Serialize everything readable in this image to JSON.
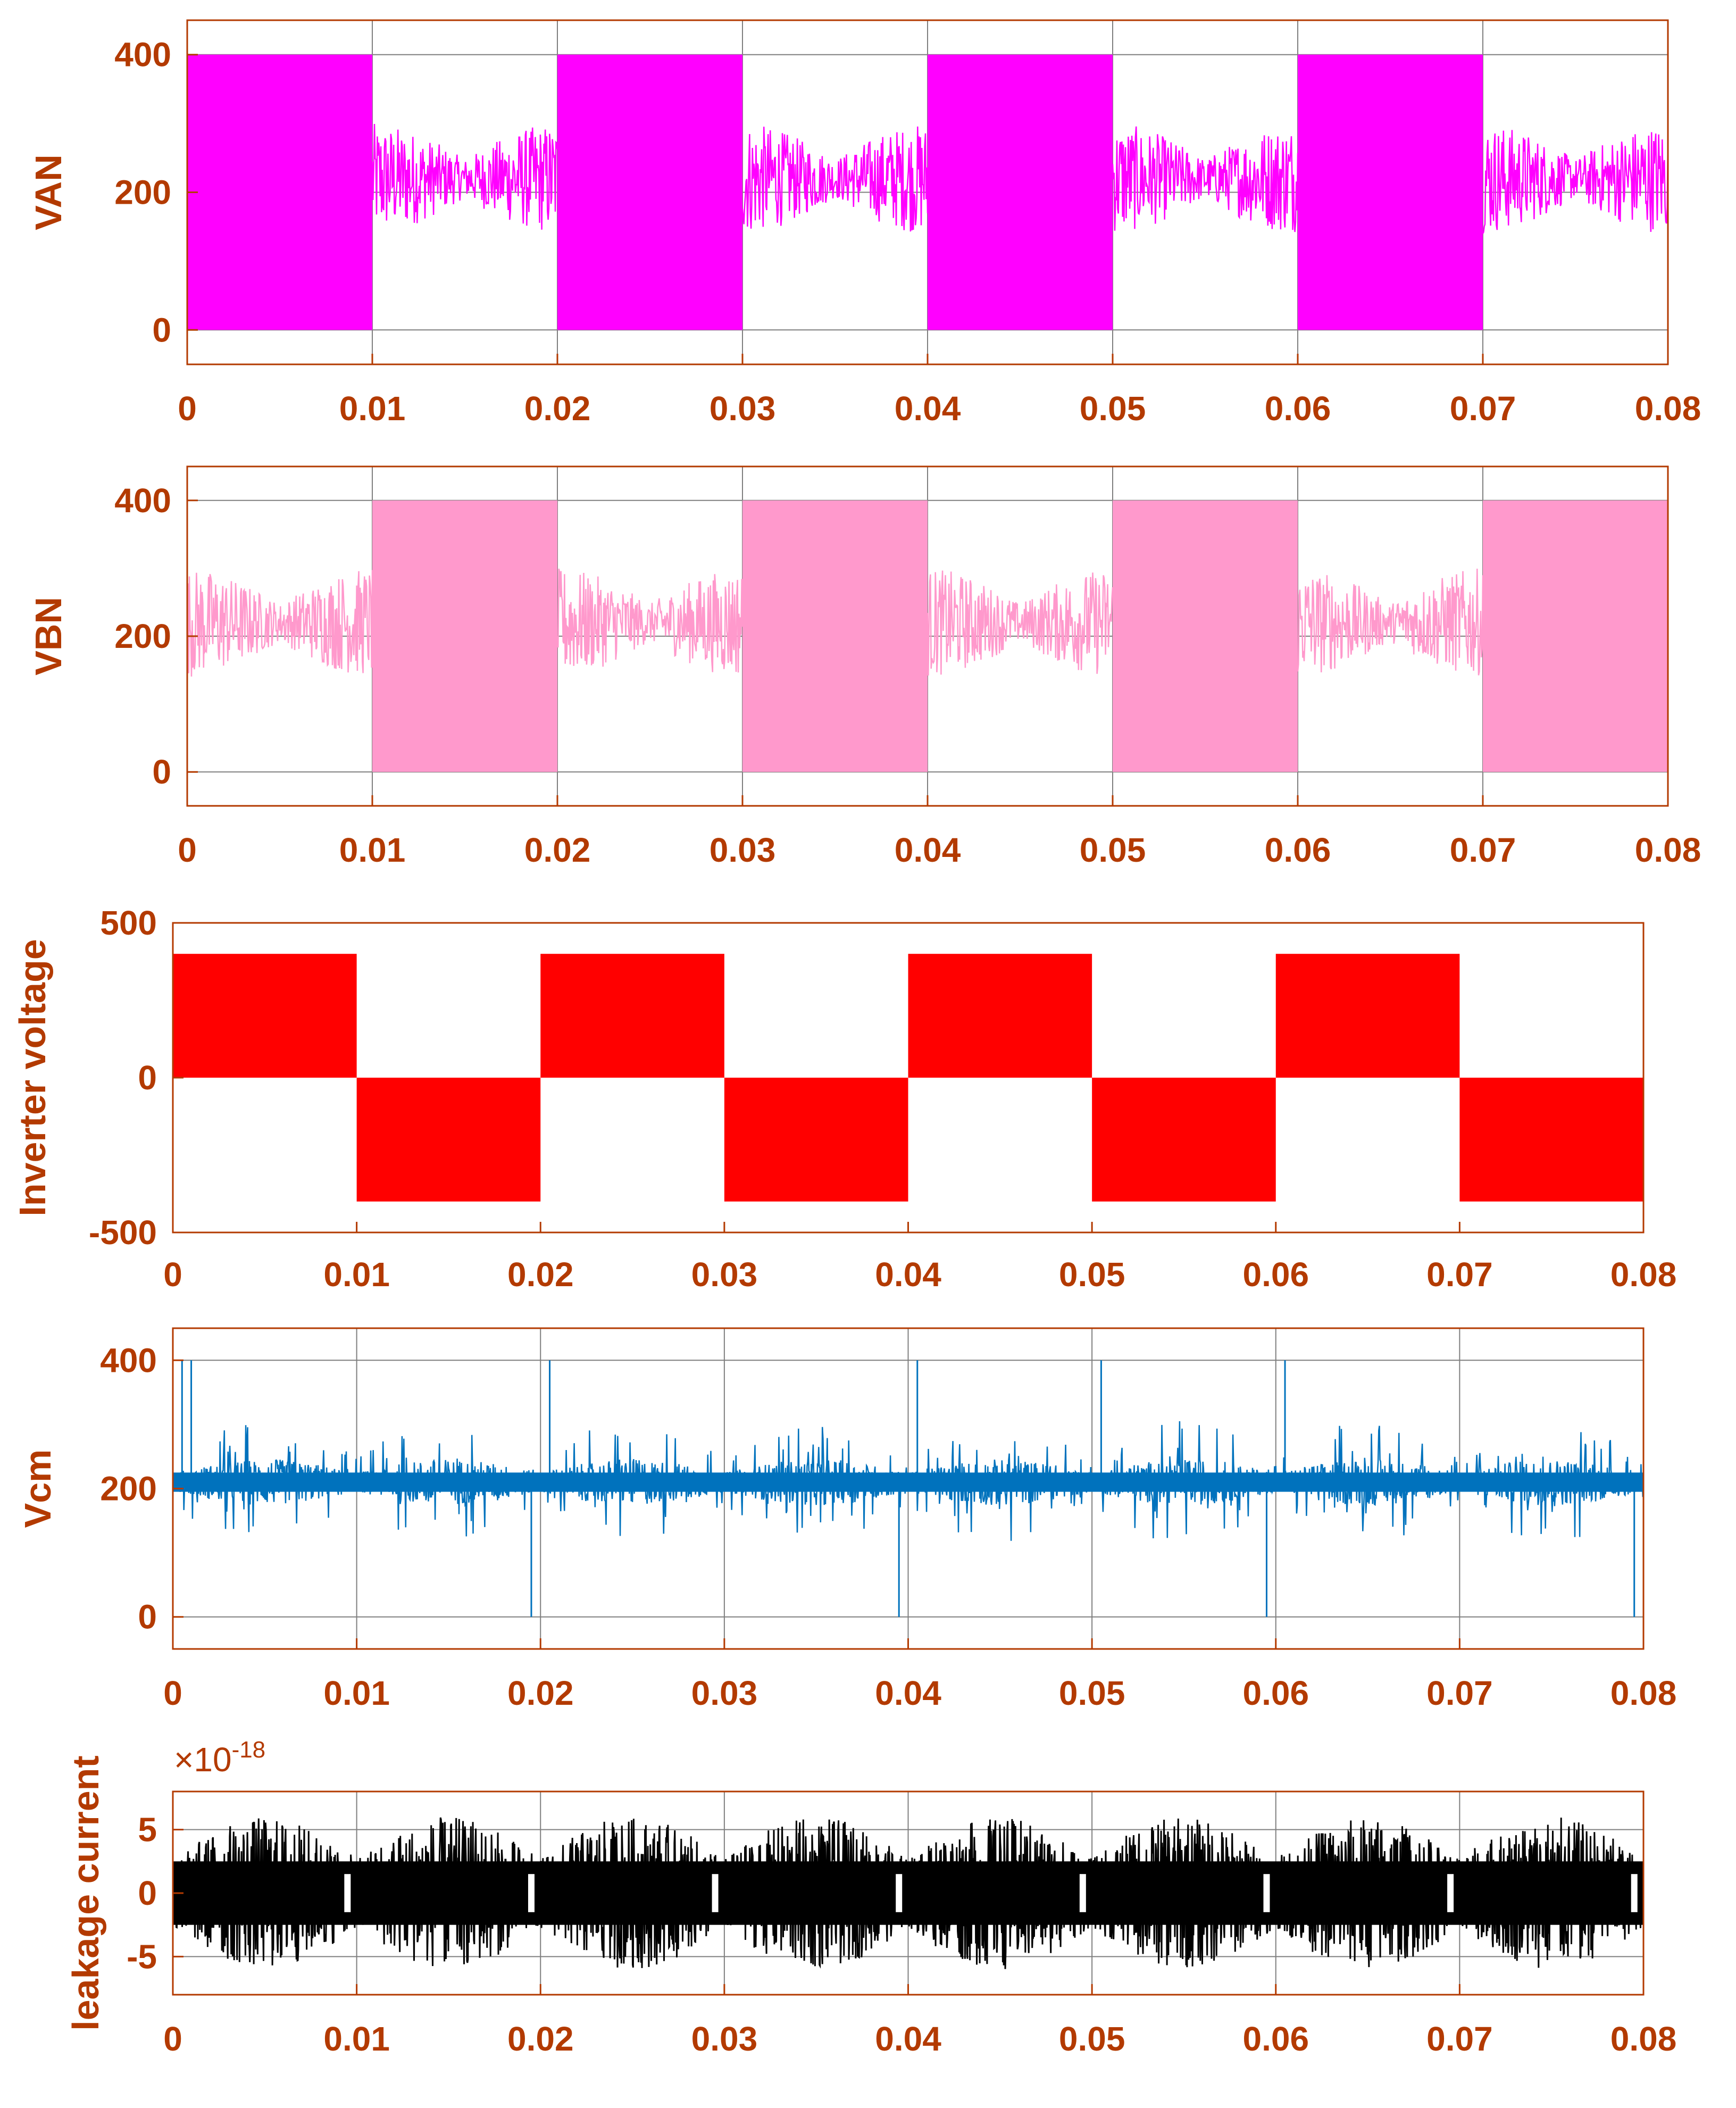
{
  "colors": {
    "axis": "#b33a00",
    "grid": "#7f7f7f",
    "van": "#ff00ff",
    "vbn": "#ff99cc",
    "inverter": "#ff0000",
    "vcm": "#0072bd",
    "leakage": "#000000"
  },
  "chart_data": [
    {
      "type": "line",
      "id": "van",
      "ylabel": "VAN",
      "xlim": [
        0,
        0.08
      ],
      "ylim": [
        -50,
        450
      ],
      "xticks": [
        "0",
        "0.01",
        "0.02",
        "0.03",
        "0.04",
        "0.05",
        "0.06",
        "0.07",
        "0.08"
      ],
      "yticks": [
        "0",
        "200",
        "400"
      ],
      "yticks_values": [
        0,
        200,
        400
      ],
      "grid": true,
      "waveform": {
        "kind": "pwm_square",
        "period": 0.02,
        "high_start": 0.0,
        "high_level": 400,
        "low_level": 0,
        "ringing_center": 220,
        "ringing_amplitude": 80
      }
    },
    {
      "type": "line",
      "id": "vbn",
      "ylabel": "VBN",
      "xlim": [
        0,
        0.08
      ],
      "ylim": [
        -50,
        450
      ],
      "xticks": [
        "0",
        "0.01",
        "0.02",
        "0.03",
        "0.04",
        "0.05",
        "0.06",
        "0.07",
        "0.08"
      ],
      "yticks": [
        "0",
        "200",
        "400"
      ],
      "yticks_values": [
        0,
        200,
        400
      ],
      "grid": true,
      "waveform": {
        "kind": "pwm_square",
        "period": 0.02,
        "high_start": 0.01,
        "high_level": 400,
        "low_level": 0,
        "ringing_center": 220,
        "ringing_amplitude": 80
      }
    },
    {
      "type": "line",
      "id": "inverter",
      "ylabel": "Inverter voltage",
      "xlim": [
        0,
        0.08
      ],
      "ylim": [
        -500,
        500
      ],
      "xticks": [
        "0",
        "0.01",
        "0.02",
        "0.03",
        "0.04",
        "0.05",
        "0.06",
        "0.07",
        "0.08"
      ],
      "yticks": [
        "-500",
        "0",
        "500"
      ],
      "yticks_values": [
        -500,
        0,
        500
      ],
      "grid": false,
      "waveform": {
        "kind": "bipolar_pwm",
        "period": 0.02,
        "level": 400
      }
    },
    {
      "type": "line",
      "id": "vcm",
      "ylabel": "Vcm",
      "xlim": [
        0,
        0.08
      ],
      "ylim": [
        -50,
        450
      ],
      "xticks": [
        "0",
        "0.01",
        "0.02",
        "0.03",
        "0.04",
        "0.05",
        "0.06",
        "0.07",
        "0.08"
      ],
      "yticks": [
        "0",
        "200",
        "400"
      ],
      "yticks_values": [
        0,
        200,
        400
      ],
      "grid": true,
      "waveform": {
        "kind": "noise",
        "center": 210,
        "amplitude": 60,
        "spikes_up": [
          0.0005,
          0.001,
          0.0205,
          0.0405,
          0.0505,
          0.0605
        ],
        "spikes_down": [
          0.0195,
          0.0395,
          0.0595,
          0.0795
        ],
        "spike_high": 400,
        "spike_low": 0
      }
    },
    {
      "type": "line",
      "id": "leakage",
      "ylabel": "leakage current",
      "xlim": [
        0,
        0.08
      ],
      "ylim": [
        -8,
        8
      ],
      "xticks": [
        "0",
        "0.01",
        "0.02",
        "0.03",
        "0.04",
        "0.05",
        "0.06",
        "0.07",
        "0.08"
      ],
      "yticks": [
        "-5",
        "0",
        "5"
      ],
      "yticks_values": [
        -5,
        0,
        5
      ],
      "grid": true,
      "exponent": "-18",
      "exponent_prefix": "×10",
      "waveform": {
        "kind": "noise_band",
        "center": 0,
        "amplitude": 6,
        "gaps": [
          0.0095,
          0.0195,
          0.0295,
          0.0395,
          0.0495,
          0.0595,
          0.0695,
          0.0795
        ]
      }
    }
  ]
}
